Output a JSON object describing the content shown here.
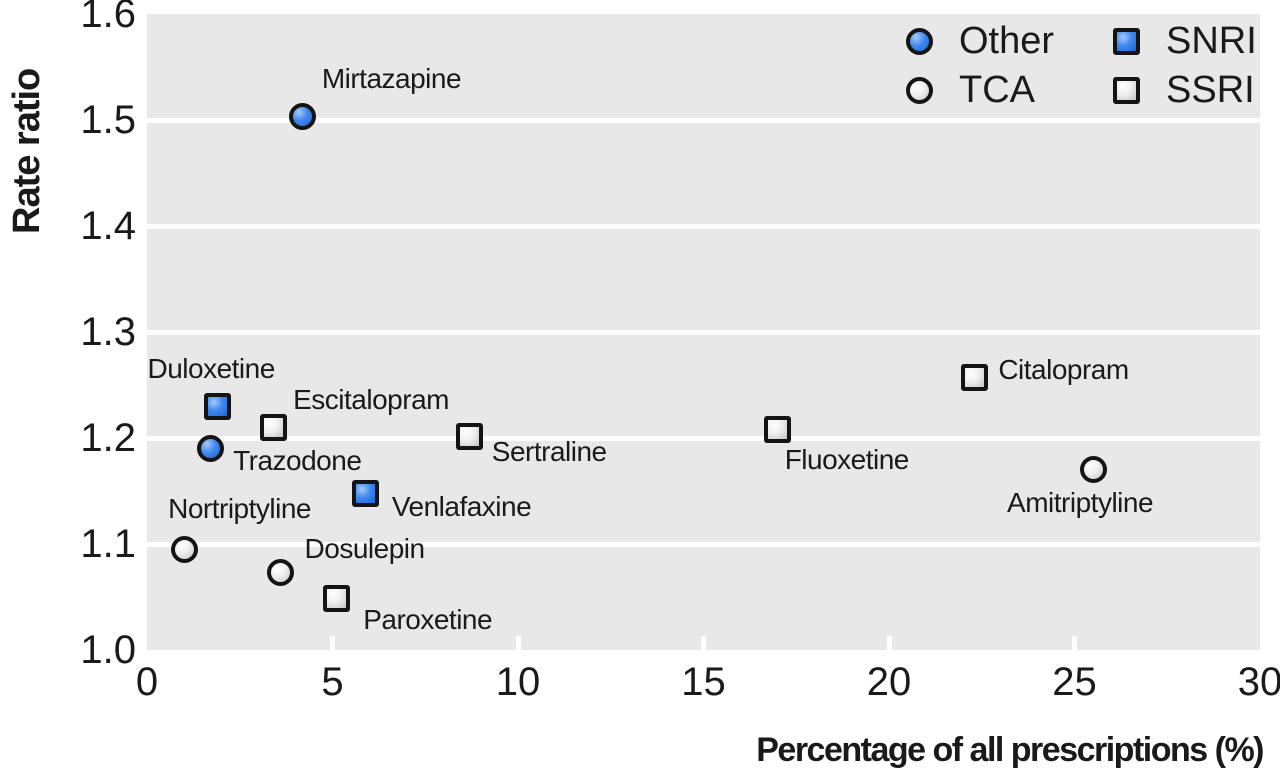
{
  "figure": {
    "background_color": "#ffffff",
    "plot_background_color": "#e8e8e8",
    "gridline_color": "#ffffff",
    "text_color": "#1a1a1a",
    "marker_outline_color": "#141414",
    "blue_fill": "#2e7be5",
    "gray_fill": "#e2e2e2"
  },
  "chart_data": {
    "type": "scatter",
    "title": "",
    "xlabel": "Percentage of all prescriptions (%)",
    "ylabel": "Rate ratio",
    "xlim": [
      0,
      30
    ],
    "ylim": [
      1.0,
      1.6
    ],
    "x_ticks": [
      0,
      5,
      10,
      15,
      20,
      25,
      30
    ],
    "x_tick_labels": [
      "0",
      "5",
      "10",
      "15",
      "20",
      "25",
      "30"
    ],
    "y_ticks": [
      1.0,
      1.1,
      1.2,
      1.3,
      1.4,
      1.5,
      1.6
    ],
    "y_tick_labels": [
      "1.0",
      "1.1",
      "1.2",
      "1.3",
      "1.4",
      "1.5",
      "1.6"
    ],
    "grid": "horizontal white gridlines on gray panel",
    "legend_position": "top-right",
    "legend": [
      {
        "label": "Other",
        "marker": "circle",
        "color": "blue"
      },
      {
        "label": "SNRI",
        "marker": "square",
        "color": "blue"
      },
      {
        "label": "TCA",
        "marker": "circle",
        "color": "gray"
      },
      {
        "label": "SSRI",
        "marker": "square",
        "color": "gray"
      }
    ],
    "series": [
      {
        "name": "Other",
        "marker": "circle",
        "color": "blue",
        "points": [
          {
            "label": "Mirtazapine",
            "x": 4.2,
            "y": 1.503,
            "label_offset": [
              19,
              -47
            ]
          },
          {
            "label": "Trazodone",
            "x": 1.7,
            "y": 1.19,
            "label_offset": [
              23,
              3
            ]
          }
        ]
      },
      {
        "name": "TCA",
        "marker": "circle",
        "color": "gray",
        "points": [
          {
            "label": "Nortriptyline",
            "x": 1.0,
            "y": 1.095,
            "label_offset": [
              -16,
              -49
            ]
          },
          {
            "label": "Dosulepin",
            "x": 3.6,
            "y": 1.073,
            "label_offset": [
              24,
              -33
            ]
          },
          {
            "label": "Amitriptyline",
            "x": 25.5,
            "y": 1.17,
            "label_offset": [
              -86,
              24
            ]
          }
        ]
      },
      {
        "name": "SNRI",
        "marker": "square",
        "color": "blue",
        "points": [
          {
            "label": "Duloxetine",
            "x": 1.9,
            "y": 1.23,
            "label_offset": [
              -70,
              -46
            ]
          },
          {
            "label": "Venlafaxine",
            "x": 5.9,
            "y": 1.148,
            "label_offset": [
              26,
              5
            ]
          }
        ]
      },
      {
        "name": "SSRI",
        "marker": "square",
        "color": "gray",
        "points": [
          {
            "label": "Escitalopram",
            "x": 3.4,
            "y": 1.21,
            "label_offset": [
              20,
              -36
            ]
          },
          {
            "label": "Paroxetine",
            "x": 5.1,
            "y": 1.049,
            "label_offset": [
              27,
              13
            ]
          },
          {
            "label": "Sertraline",
            "x": 8.7,
            "y": 1.201,
            "label_offset": [
              22,
              6
            ]
          },
          {
            "label": "Fluoxetine",
            "x": 17.0,
            "y": 1.208,
            "label_offset": [
              7,
              21
            ]
          },
          {
            "label": "Citalopram",
            "x": 22.3,
            "y": 1.257,
            "label_offset": [
              24,
              -17
            ]
          }
        ]
      }
    ]
  }
}
